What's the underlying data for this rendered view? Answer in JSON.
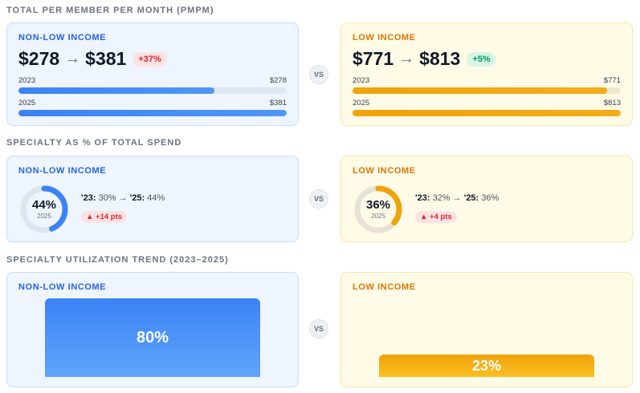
{
  "sections": {
    "pmpm_title": "TOTAL PER MEMBER PER MONTH (PMPM)",
    "specialty_title": "SPECIALTY AS % OF TOTAL SPEND",
    "util_title": "SPECIALTY UTILIZATION TREND (2023–2025)"
  },
  "vs_label": "VS",
  "pmpm": {
    "non_low": {
      "label": "NON-LOW INCOME",
      "from": "$278",
      "arrow": "→",
      "to": "$381",
      "change": "+37%",
      "bars": [
        {
          "year": "2023",
          "value": "$278",
          "fraction": 0.73
        },
        {
          "year": "2025",
          "value": "$381",
          "fraction": 1.0
        }
      ]
    },
    "low": {
      "label": "LOW INCOME",
      "from": "$771",
      "arrow": "→",
      "to": "$813",
      "change": "+5%",
      "bars": [
        {
          "year": "2023",
          "value": "$771",
          "fraction": 0.95
        },
        {
          "year": "2025",
          "value": "$813",
          "fraction": 1.0
        }
      ]
    }
  },
  "specialty": {
    "non_low": {
      "label": "NON-LOW INCOME",
      "pct": "44%",
      "pct_value": 44,
      "year": "2025",
      "y23_label": "'23:",
      "y23_value": " 30% → ",
      "y25_label": "'25:",
      "y25_value": " 44%",
      "change": "▲ +14 pts",
      "color": "#3b82f6"
    },
    "low": {
      "label": "LOW INCOME",
      "pct": "36%",
      "pct_value": 36,
      "year": "2025",
      "y23_label": "'23:",
      "y23_value": " 32% → ",
      "y25_label": "'25:",
      "y25_value": " 36%",
      "change": "▲ +4 pts",
      "color": "#f0a30a"
    }
  },
  "utilization": {
    "non_low": {
      "label": "NON-LOW INCOME",
      "value": "80%",
      "fraction": 0.8
    },
    "low": {
      "label": "LOW INCOME",
      "value": "23%",
      "fraction": 0.23
    }
  }
}
